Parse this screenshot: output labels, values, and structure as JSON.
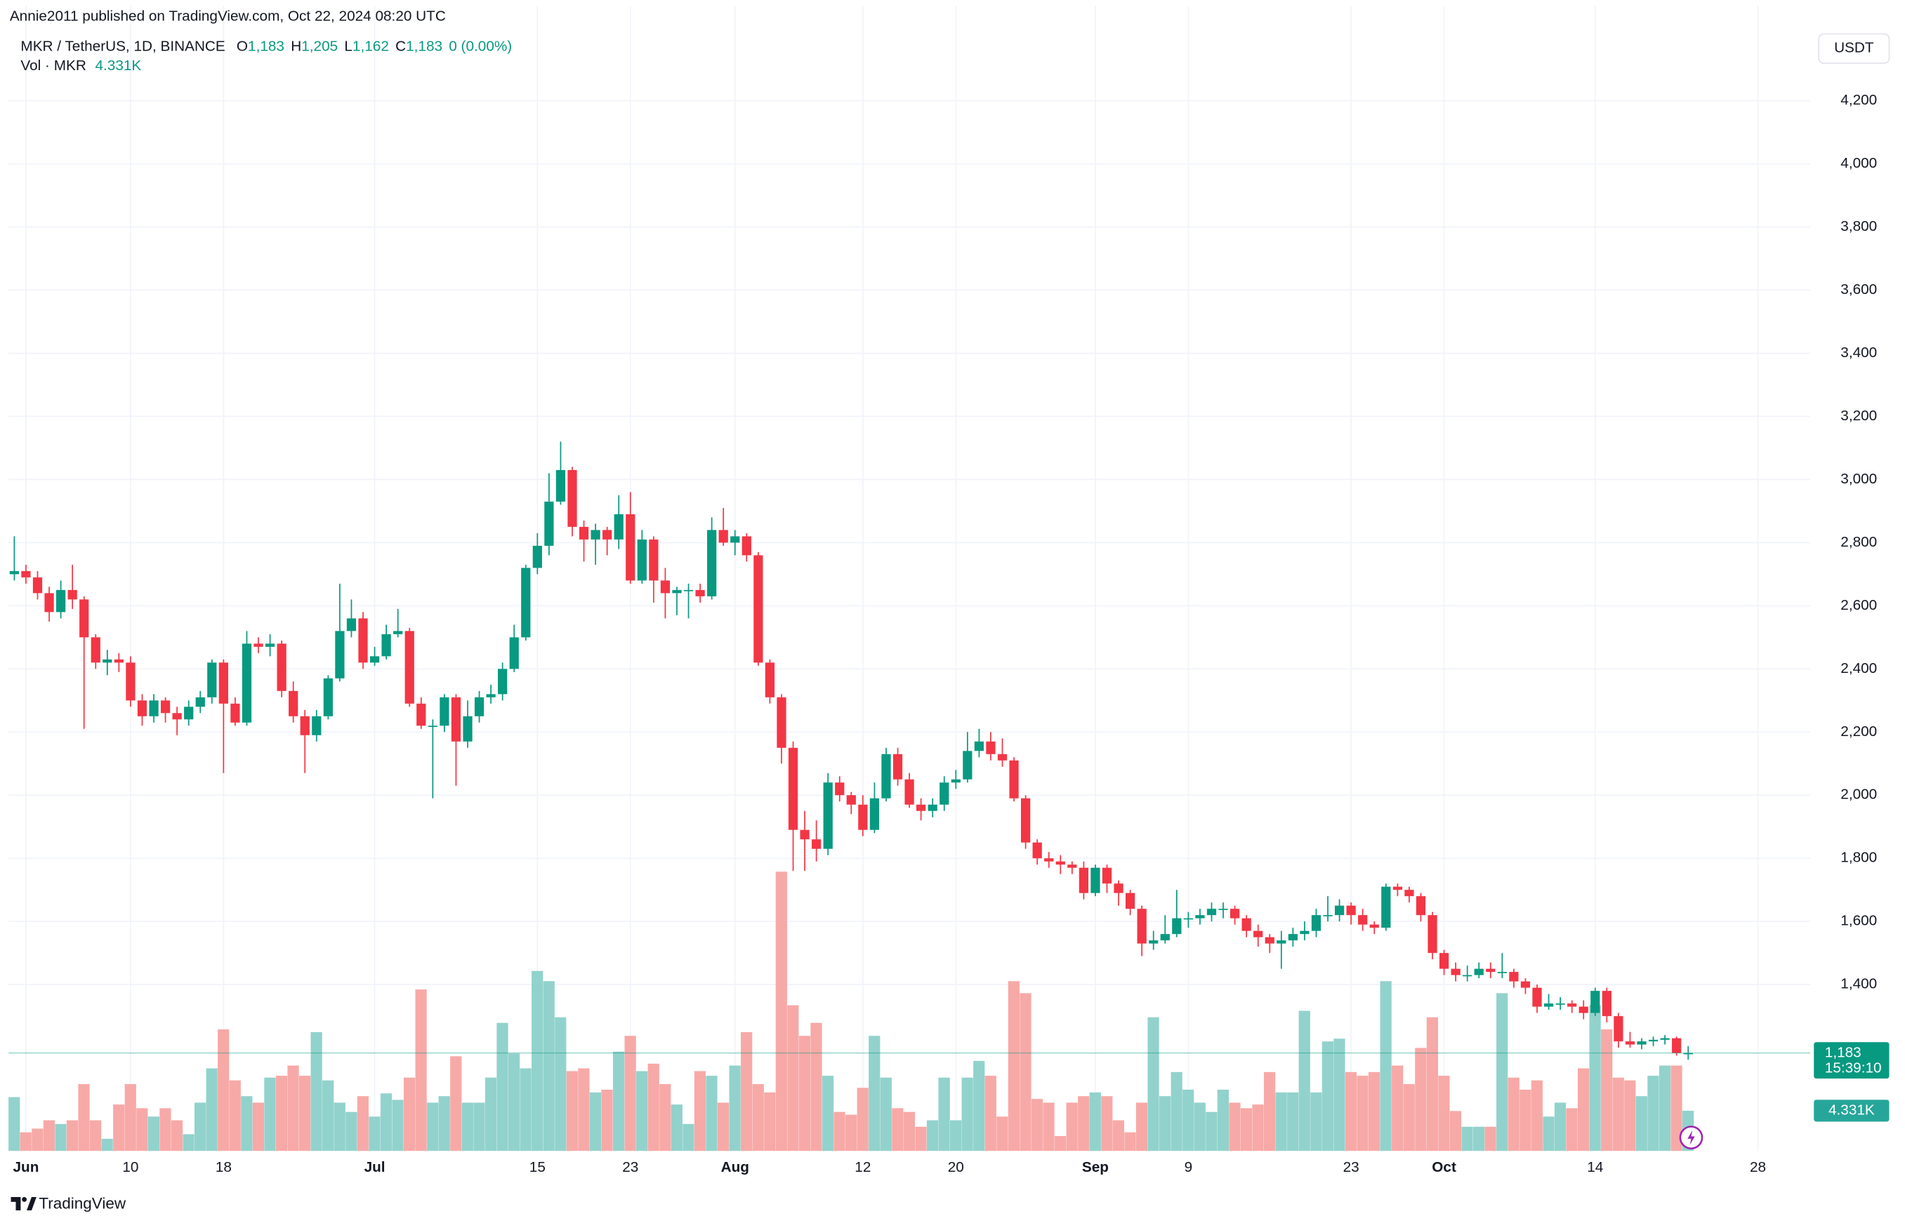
{
  "header": {
    "published": "Annie2011 published on TradingView.com, Oct 22, 2024 08:20 UTC",
    "symbol": "MKR / TetherUS, 1D, BINANCE",
    "ohlc": [
      {
        "label": "O",
        "value": "1,183"
      },
      {
        "label": "H",
        "value": "1,205"
      },
      {
        "label": "L",
        "value": "1,162"
      },
      {
        "label": "C",
        "value": "1,183"
      }
    ],
    "change": "0 (0.00%)",
    "volume_title": "Vol · MKR",
    "volume_value": "4.331K"
  },
  "chart_data": {
    "type": "candlestick",
    "currency": "USDT",
    "categories": [
      null,
      "Jun",
      null,
      null,
      null,
      null,
      null,
      null,
      null,
      null,
      "10",
      null,
      null,
      null,
      null,
      null,
      null,
      null,
      "18",
      null,
      null,
      null,
      null,
      null,
      null,
      null,
      null,
      null,
      null,
      null,
      null,
      "Jul",
      null,
      null,
      null,
      null,
      null,
      null,
      null,
      null,
      null,
      null,
      null,
      null,
      null,
      "15",
      null,
      null,
      null,
      null,
      null,
      null,
      null,
      "23",
      null,
      null,
      null,
      null,
      null,
      null,
      null,
      null,
      "Aug",
      null,
      null,
      null,
      null,
      null,
      null,
      null,
      null,
      null,
      null,
      "12",
      null,
      null,
      null,
      null,
      null,
      null,
      null,
      "20",
      null,
      null,
      null,
      null,
      null,
      null,
      null,
      null,
      null,
      null,
      null,
      "Sep",
      null,
      null,
      null,
      null,
      null,
      null,
      null,
      "9",
      null,
      null,
      null,
      null,
      null,
      null,
      null,
      null,
      null,
      null,
      null,
      null,
      null,
      "23",
      null,
      null,
      null,
      null,
      null,
      null,
      null,
      "Oct",
      null,
      null,
      null,
      null,
      null,
      null,
      null,
      null,
      null,
      null,
      null,
      null,
      "14",
      null,
      null,
      null,
      null,
      null,
      null,
      null,
      null,
      null,
      null,
      null,
      null,
      null,
      "28",
      null,
      null,
      null,
      null
    ],
    "open": [
      2700,
      2710,
      2690,
      2640,
      2580,
      2650,
      2620,
      2500,
      2420,
      2430,
      2420,
      2300,
      2250,
      2300,
      2260,
      2240,
      2280,
      2310,
      2420,
      2290,
      2230,
      2480,
      2470,
      2480,
      2330,
      2250,
      2190,
      2250,
      2370,
      2520,
      2560,
      2420,
      2440,
      2510,
      2520,
      2290,
      2220,
      2220,
      2310,
      2170,
      2250,
      2310,
      2320,
      2400,
      2500,
      2720,
      2790,
      2930,
      3030,
      2850,
      2810,
      2840,
      2810,
      2890,
      2680,
      2810,
      2680,
      2640,
      2650,
      2650,
      2630,
      2840,
      2800,
      2820,
      2760,
      2420,
      2310,
      2150,
      1890,
      1860,
      1830,
      2040,
      2000,
      1970,
      1890,
      1990,
      2130,
      2050,
      1970,
      1950,
      1970,
      2040,
      2050,
      2140,
      2170,
      2130,
      2110,
      1990,
      1850,
      1800,
      1790,
      1780,
      1770,
      1690,
      1770,
      1720,
      1690,
      1640,
      1530,
      1540,
      1560,
      1610,
      1610,
      1620,
      1640,
      1640,
      1610,
      1570,
      1550,
      1530,
      1540,
      1560,
      1570,
      1620,
      1620,
      1650,
      1620,
      1590,
      1580,
      1710,
      1700,
      1680,
      1620,
      1500,
      1450,
      1430,
      1430,
      1450,
      1440,
      1440,
      1410,
      1390,
      1330,
      1340,
      1340,
      1330,
      1310,
      1380,
      1300,
      1220,
      1210,
      1220,
      1225,
      1230,
      1183,
      null,
      null,
      null,
      null,
      null,
      null,
      null,
      null,
      null,
      null
    ],
    "high": [
      2820,
      2730,
      2710,
      2660,
      2680,
      2730,
      2630,
      2510,
      2460,
      2450,
      2440,
      2320,
      2320,
      2310,
      2280,
      2300,
      2330,
      2430,
      2430,
      2310,
      2520,
      2500,
      2510,
      2490,
      2360,
      2270,
      2270,
      2380,
      2670,
      2620,
      2580,
      2470,
      2540,
      2590,
      2530,
      2310,
      2240,
      2320,
      2320,
      2300,
      2330,
      2350,
      2420,
      2540,
      2730,
      2830,
      3020,
      3120,
      3040,
      2870,
      2860,
      2850,
      2950,
      2960,
      2840,
      2820,
      2720,
      2660,
      2670,
      2670,
      2880,
      2910,
      2840,
      2830,
      2770,
      2430,
      2320,
      2170,
      1950,
      1920,
      2070,
      2060,
      2010,
      2000,
      2040,
      2150,
      2150,
      2070,
      1990,
      1990,
      2060,
      2080,
      2200,
      2210,
      2200,
      2180,
      2120,
      2000,
      1860,
      1820,
      1810,
      1790,
      1790,
      1780,
      1780,
      1730,
      1700,
      1650,
      1570,
      1620,
      1700,
      1630,
      1640,
      1660,
      1660,
      1650,
      1620,
      1590,
      1560,
      1570,
      1580,
      1600,
      1640,
      1680,
      1670,
      1660,
      1640,
      1600,
      1720,
      1720,
      1710,
      1690,
      1630,
      1510,
      1470,
      1460,
      1470,
      1470,
      1500,
      1450,
      1420,
      1400,
      1370,
      1360,
      1350,
      1350,
      1390,
      1390,
      1310,
      1250,
      1230,
      1235,
      1240,
      1235,
      1205,
      null,
      null,
      null,
      null,
      null,
      null,
      null,
      null,
      null,
      null
    ],
    "low": [
      2680,
      2670,
      2620,
      2550,
      2560,
      2590,
      2210,
      2400,
      2380,
      2390,
      2280,
      2220,
      2230,
      2230,
      2190,
      2220,
      2260,
      2290,
      2070,
      2220,
      2220,
      2450,
      2440,
      2310,
      2230,
      2070,
      2170,
      2240,
      2360,
      2500,
      2400,
      2410,
      2430,
      2500,
      2280,
      2210,
      1990,
      2200,
      2030,
      2150,
      2230,
      2290,
      2300,
      2390,
      2490,
      2700,
      2760,
      2920,
      2820,
      2740,
      2730,
      2760,
      2780,
      2670,
      2670,
      2610,
      2560,
      2570,
      2560,
      2610,
      2620,
      2790,
      2760,
      2740,
      2410,
      2290,
      2100,
      1760,
      1760,
      1790,
      1810,
      1980,
      1940,
      1870,
      1880,
      1980,
      2030,
      1960,
      1920,
      1930,
      1950,
      2020,
      2040,
      2120,
      2110,
      2090,
      1980,
      1830,
      1780,
      1770,
      1750,
      1750,
      1670,
      1680,
      1690,
      1650,
      1620,
      1490,
      1510,
      1530,
      1550,
      1580,
      1590,
      1600,
      1610,
      1590,
      1550,
      1520,
      1500,
      1450,
      1520,
      1540,
      1550,
      1600,
      1600,
      1590,
      1570,
      1560,
      1570,
      1680,
      1660,
      1600,
      1480,
      1430,
      1410,
      1410,
      1420,
      1420,
      1420,
      1390,
      1370,
      1310,
      1320,
      1320,
      1310,
      1290,
      1300,
      1280,
      1200,
      1200,
      1195,
      1205,
      1210,
      1175,
      1162,
      null,
      null,
      null,
      null,
      null,
      null,
      null,
      null,
      null,
      null
    ],
    "close": [
      2710,
      2690,
      2640,
      2580,
      2650,
      2620,
      2500,
      2420,
      2430,
      2420,
      2300,
      2250,
      2300,
      2260,
      2240,
      2280,
      2310,
      2420,
      2290,
      2230,
      2480,
      2470,
      2480,
      2330,
      2250,
      2190,
      2250,
      2370,
      2520,
      2560,
      2420,
      2440,
      2510,
      2520,
      2290,
      2220,
      2220,
      2310,
      2170,
      2250,
      2310,
      2320,
      2400,
      2500,
      2720,
      2790,
      2930,
      3030,
      2850,
      2810,
      2840,
      2810,
      2890,
      2680,
      2810,
      2680,
      2640,
      2650,
      2650,
      2630,
      2840,
      2800,
      2820,
      2760,
      2420,
      2310,
      2150,
      1890,
      1860,
      1830,
      2040,
      2000,
      1970,
      1890,
      1990,
      2130,
      2050,
      1970,
      1950,
      1970,
      2040,
      2050,
      2140,
      2170,
      2130,
      2110,
      1990,
      1850,
      1800,
      1790,
      1780,
      1770,
      1690,
      1770,
      1720,
      1690,
      1640,
      1530,
      1540,
      1560,
      1610,
      1610,
      1620,
      1640,
      1640,
      1610,
      1570,
      1550,
      1530,
      1540,
      1560,
      1570,
      1620,
      1620,
      1650,
      1620,
      1590,
      1580,
      1710,
      1700,
      1680,
      1620,
      1500,
      1450,
      1430,
      1430,
      1450,
      1440,
      1440,
      1410,
      1390,
      1330,
      1340,
      1340,
      1330,
      1310,
      1380,
      1300,
      1220,
      1210,
      1220,
      1225,
      1230,
      1183,
      1183,
      null,
      null,
      null,
      null,
      null,
      null,
      null,
      null,
      null,
      null
    ],
    "volume": [
      5.8,
      2.0,
      2.4,
      3.3,
      2.9,
      3.3,
      7.2,
      3.3,
      1.3,
      5.0,
      7.2,
      4.6,
      3.7,
      4.6,
      3.3,
      1.8,
      5.2,
      8.9,
      13.1,
      7.6,
      5.9,
      5.2,
      7.9,
      8.1,
      9.2,
      8.1,
      12.8,
      7.6,
      5.2,
      4.2,
      5.9,
      3.7,
      6.2,
      5.5,
      7.9,
      17.4,
      5.2,
      5.9,
      10.2,
      5.2,
      5.2,
      7.9,
      13.8,
      10.5,
      8.9,
      19.4,
      18.3,
      14.4,
      8.6,
      8.9,
      6.3,
      6.6,
      10.7,
      12.4,
      8.6,
      9.4,
      7.2,
      5.0,
      2.9,
      8.6,
      8.1,
      5.2,
      9.2,
      12.8,
      7.2,
      6.3,
      30.1,
      15.7,
      12.4,
      13.8,
      8.1,
      4.2,
      3.9,
      6.8,
      12.4,
      7.9,
      4.6,
      4.2,
      2.6,
      3.3,
      7.9,
      3.3,
      7.9,
      9.7,
      8.1,
      3.7,
      18.3,
      17.0,
      5.6,
      5.2,
      1.6,
      5.2,
      5.9,
      6.3,
      5.9,
      3.3,
      2.0,
      5.2,
      14.4,
      5.9,
      8.5,
      6.6,
      5.2,
      4.2,
      6.6,
      5.2,
      4.6,
      5.0,
      8.5,
      6.3,
      6.3,
      15.1,
      6.3,
      11.8,
      12.1,
      8.5,
      8.1,
      8.5,
      18.3,
      9.2,
      7.2,
      11.1,
      14.4,
      8.1,
      4.3,
      2.6,
      2.6,
      2.6,
      17.0,
      7.9,
      6.6,
      7.6,
      3.7,
      5.2,
      4.6,
      8.9,
      15.7,
      13.1,
      7.9,
      7.6,
      5.9,
      8.1,
      9.2,
      9.2,
      4.331,
      null,
      null,
      null,
      null,
      null,
      null,
      null,
      null,
      null,
      null
    ],
    "up_color": "#089981",
    "down_color": "#f23645",
    "volume_up_color": "#92d2cc",
    "volume_down_color": "#f7a9a7",
    "ylim": [
      873,
      4423
    ],
    "yticks": [
      {
        "value": 1400,
        "label": "1,400"
      },
      {
        "value": 1600,
        "label": "1,600"
      },
      {
        "value": 1800,
        "label": "1,800"
      },
      {
        "value": 2000,
        "label": "2,000"
      },
      {
        "value": 2200,
        "label": "2,200"
      },
      {
        "value": 2400,
        "label": "2,400"
      },
      {
        "value": 2600,
        "label": "2,600"
      },
      {
        "value": 2800,
        "label": "2,800"
      },
      {
        "value": 3000,
        "label": "3,000"
      },
      {
        "value": 3200,
        "label": "3,200"
      },
      {
        "value": 3400,
        "label": "3,400"
      },
      {
        "value": 3600,
        "label": "3,600"
      },
      {
        "value": 3800,
        "label": "3,800"
      },
      {
        "value": 4000,
        "label": "4,000"
      },
      {
        "value": 4200,
        "label": "4,200"
      }
    ],
    "grid": true,
    "last_price_label": "1,183",
    "countdown": "15:39:10",
    "volume_label": "4.331K"
  },
  "footer": {
    "brand": "TradingView"
  }
}
